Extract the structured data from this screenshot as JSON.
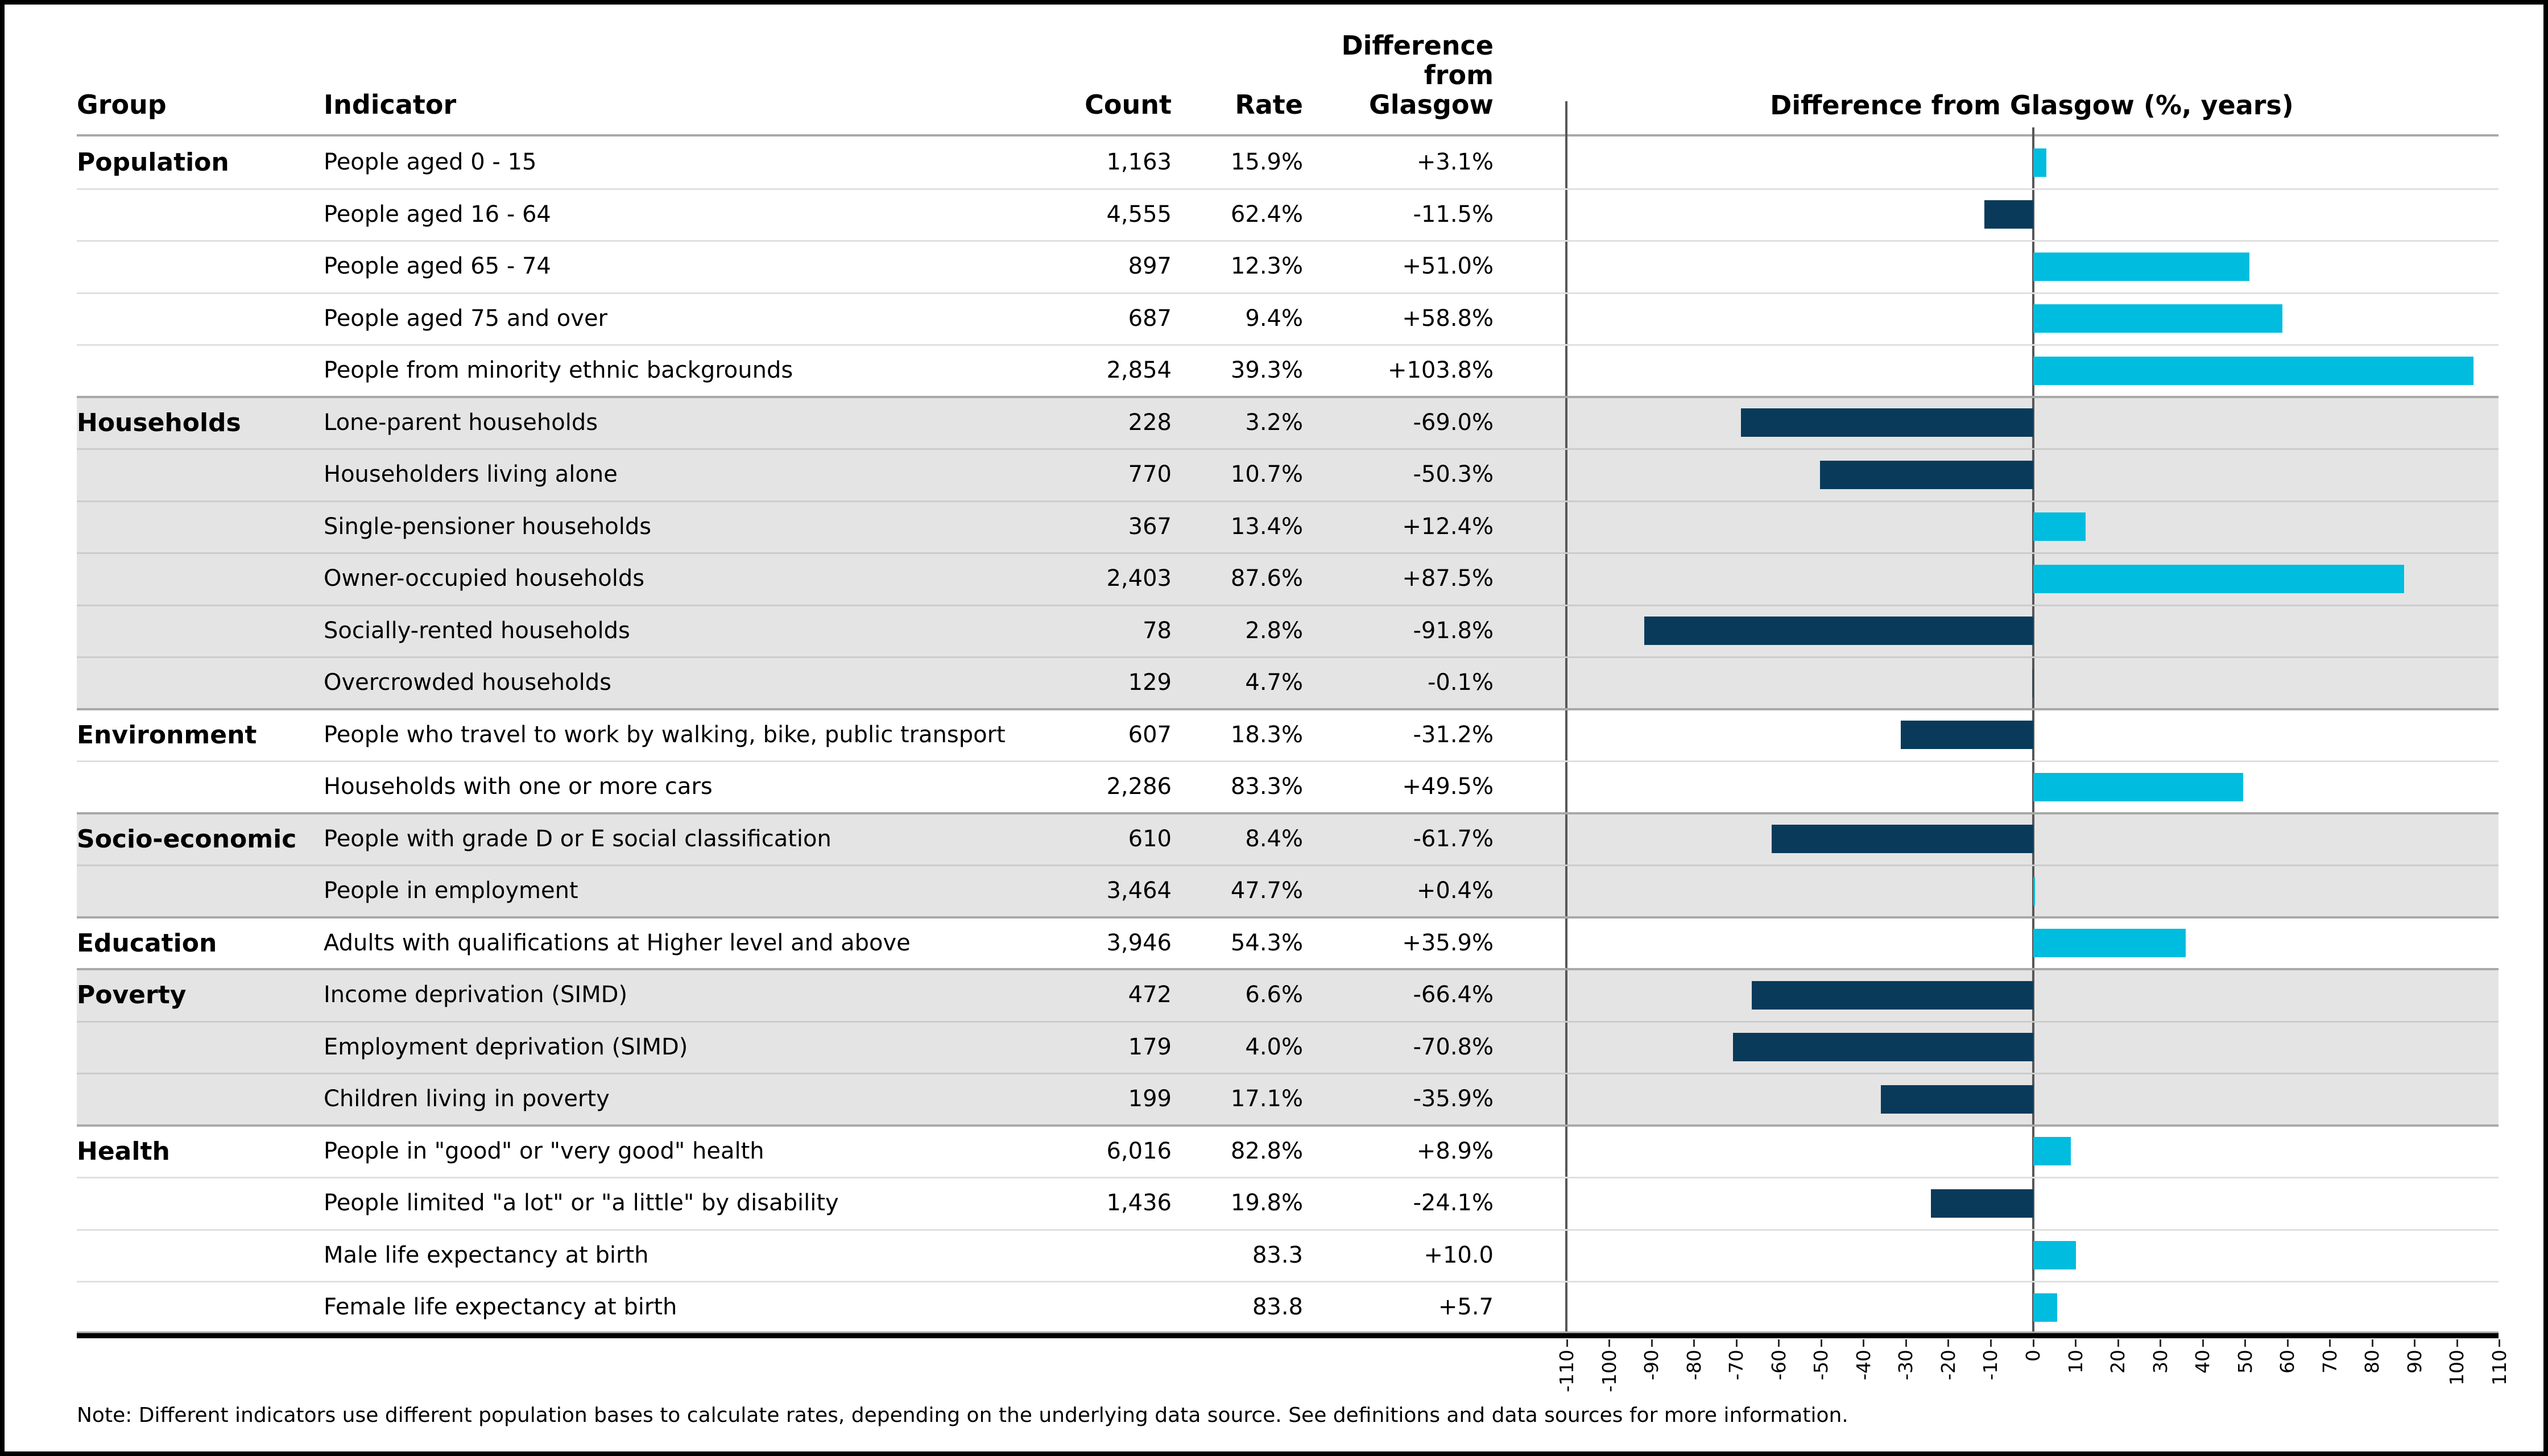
{
  "header": {
    "group": "Group",
    "indicator": "Indicator",
    "count": "Count",
    "rate": "Rate",
    "diff_lines": [
      "Difference",
      "from",
      "Glasgow"
    ],
    "chart_title": "Difference from Glasgow (%, years)"
  },
  "note": "Note: Different indicators use different population bases to calculate rates, depending on the underlying data source. See definitions and data sources for more information.",
  "colors": {
    "positive_bar": "#00bcde",
    "negative_bar": "#093a5a",
    "row_shade": "#e4e4e4",
    "group_line": "#a9a9a9",
    "row_line_white": "#e0e0e0",
    "row_line_shaded": "#cccccc",
    "axis_line": "#575757",
    "tick": "#2b2b2b"
  },
  "axis": {
    "min": -110,
    "max": 110,
    "step": 10,
    "tick_labels": [
      "-110",
      "-100",
      "-90",
      "-80",
      "-70",
      "-60",
      "-50",
      "-40",
      "-30",
      "-20",
      "-10",
      "0",
      "10",
      "20",
      "30",
      "40",
      "50",
      "60",
      "70",
      "80",
      "90",
      "100",
      "110"
    ]
  },
  "groups": [
    {
      "name": "Population",
      "shaded": false,
      "rows": [
        {
          "indicator": "People aged 0 - 15",
          "count": "1,163",
          "rate": "15.9%",
          "diff": "+3.1%",
          "value": 3.1
        },
        {
          "indicator": "People aged 16 - 64",
          "count": "4,555",
          "rate": "62.4%",
          "diff": "-11.5%",
          "value": -11.5
        },
        {
          "indicator": "People aged 65 - 74",
          "count": "897",
          "rate": "12.3%",
          "diff": "+51.0%",
          "value": 51.0
        },
        {
          "indicator": "People aged 75 and over",
          "count": "687",
          "rate": "9.4%",
          "diff": "+58.8%",
          "value": 58.8
        },
        {
          "indicator": "People from minority ethnic backgrounds",
          "count": "2,854",
          "rate": "39.3%",
          "diff": "+103.8%",
          "value": 103.8
        }
      ]
    },
    {
      "name": "Households",
      "shaded": true,
      "rows": [
        {
          "indicator": "Lone-parent households",
          "count": "228",
          "rate": "3.2%",
          "diff": "-69.0%",
          "value": -69.0
        },
        {
          "indicator": "Householders living alone",
          "count": "770",
          "rate": "10.7%",
          "diff": "-50.3%",
          "value": -50.3
        },
        {
          "indicator": "Single-pensioner households",
          "count": "367",
          "rate": "13.4%",
          "diff": "+12.4%",
          "value": 12.4
        },
        {
          "indicator": "Owner-occupied households",
          "count": "2,403",
          "rate": "87.6%",
          "diff": "+87.5%",
          "value": 87.5
        },
        {
          "indicator": "Socially-rented households",
          "count": "78",
          "rate": "2.8%",
          "diff": "-91.8%",
          "value": -91.8
        },
        {
          "indicator": "Overcrowded households",
          "count": "129",
          "rate": "4.7%",
          "diff": "-0.1%",
          "value": -0.1
        }
      ]
    },
    {
      "name": "Environment",
      "shaded": false,
      "rows": [
        {
          "indicator": "People who travel to work by walking, bike, public transport",
          "count": "607",
          "rate": "18.3%",
          "diff": "-31.2%",
          "value": -31.2
        },
        {
          "indicator": "Households with one or more cars",
          "count": "2,286",
          "rate": "83.3%",
          "diff": "+49.5%",
          "value": 49.5
        }
      ]
    },
    {
      "name": "Socio-economic",
      "shaded": true,
      "rows": [
        {
          "indicator": "People with grade D or E social classification",
          "count": "610",
          "rate": "8.4%",
          "diff": "-61.7%",
          "value": -61.7
        },
        {
          "indicator": "People in employment",
          "count": "3,464",
          "rate": "47.7%",
          "diff": "+0.4%",
          "value": 0.4
        }
      ]
    },
    {
      "name": "Education",
      "shaded": false,
      "rows": [
        {
          "indicator": "Adults with qualifications at Higher level and above",
          "count": "3,946",
          "rate": "54.3%",
          "diff": "+35.9%",
          "value": 35.9
        }
      ]
    },
    {
      "name": "Poverty",
      "shaded": true,
      "rows": [
        {
          "indicator": "Income deprivation (SIMD)",
          "count": "472",
          "rate": "6.6%",
          "diff": "-66.4%",
          "value": -66.4
        },
        {
          "indicator": "Employment deprivation (SIMD)",
          "count": "179",
          "rate": "4.0%",
          "diff": "-70.8%",
          "value": -70.8
        },
        {
          "indicator": "Children living in poverty",
          "count": "199",
          "rate": "17.1%",
          "diff": "-35.9%",
          "value": -35.9
        }
      ]
    },
    {
      "name": "Health",
      "shaded": false,
      "rows": [
        {
          "indicator": "People in \"good\" or \"very good\" health",
          "count": "6,016",
          "rate": "82.8%",
          "diff": "+8.9%",
          "value": 8.9
        },
        {
          "indicator": "People limited \"a lot\" or \"a little\" by disability",
          "count": "1,436",
          "rate": "19.8%",
          "diff": "-24.1%",
          "value": -24.1
        },
        {
          "indicator": "Male life expectancy at birth",
          "count": "",
          "rate": "83.3",
          "diff": "+10.0",
          "value": 10.0
        },
        {
          "indicator": "Female life expectancy at birth",
          "count": "",
          "rate": "83.8",
          "diff": "+5.7",
          "value": 5.7
        }
      ]
    }
  ],
  "chart_data": {
    "type": "bar",
    "orientation": "horizontal",
    "title": "Difference from Glasgow (%, years)",
    "categories": [
      "People aged 0 - 15",
      "People aged 16 - 64",
      "People aged 65 - 74",
      "People aged 75 and over",
      "People from minority ethnic backgrounds",
      "Lone-parent households",
      "Householders living alone",
      "Single-pensioner households",
      "Owner-occupied households",
      "Socially-rented households",
      "Overcrowded households",
      "People who travel to work by walking, bike, public transport",
      "Households with one or more cars",
      "People with grade D or E social classification",
      "People in employment",
      "Adults with qualifications at Higher level and above",
      "Income deprivation (SIMD)",
      "Employment deprivation (SIMD)",
      "Children living in poverty",
      "People in \"good\" or \"very good\" health",
      "People limited \"a lot\" or \"a little\" by disability",
      "Male life expectancy at birth",
      "Female life expectancy at birth"
    ],
    "values": [
      3.1,
      -11.5,
      51.0,
      58.8,
      103.8,
      -69.0,
      -50.3,
      12.4,
      87.5,
      -91.8,
      -0.1,
      -31.2,
      49.5,
      -61.7,
      0.4,
      35.9,
      -66.4,
      -70.8,
      -35.9,
      8.9,
      -24.1,
      10.0,
      5.7
    ],
    "xlabel": "",
    "ylabel": "",
    "xlim": [
      -110,
      110
    ],
    "xtick_step": 10,
    "grid": false,
    "legend_position": "none",
    "positive_color": "#00bcde",
    "negative_color": "#093a5a"
  }
}
